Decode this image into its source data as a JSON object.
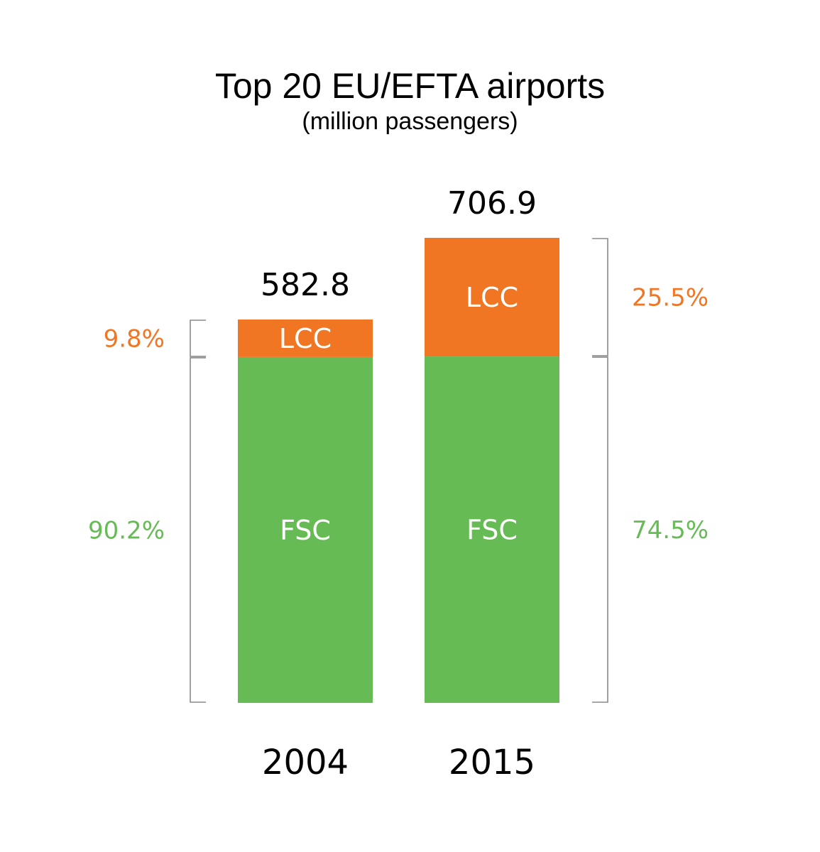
{
  "chart_data": {
    "type": "bar",
    "stacked": true,
    "title": "Top 20 EU/EFTA airports",
    "subtitle": "(million passengers)",
    "categories": [
      "2004",
      "2015"
    ],
    "totals": [
      582.8,
      706.9
    ],
    "total_labels": [
      "582.8",
      "706.9"
    ],
    "series": [
      {
        "name": "FSC",
        "color": "#66bb55",
        "values": [
          525.7,
          526.6
        ],
        "share_labels": [
          "90.2%",
          "74.5%"
        ]
      },
      {
        "name": "LCC",
        "color": "#f07623",
        "values": [
          57.1,
          180.3
        ],
        "share_labels": [
          "9.8%",
          "25.5%"
        ]
      }
    ],
    "ylim": [
      0,
      706.9
    ],
    "grid": false,
    "legend": "none"
  }
}
